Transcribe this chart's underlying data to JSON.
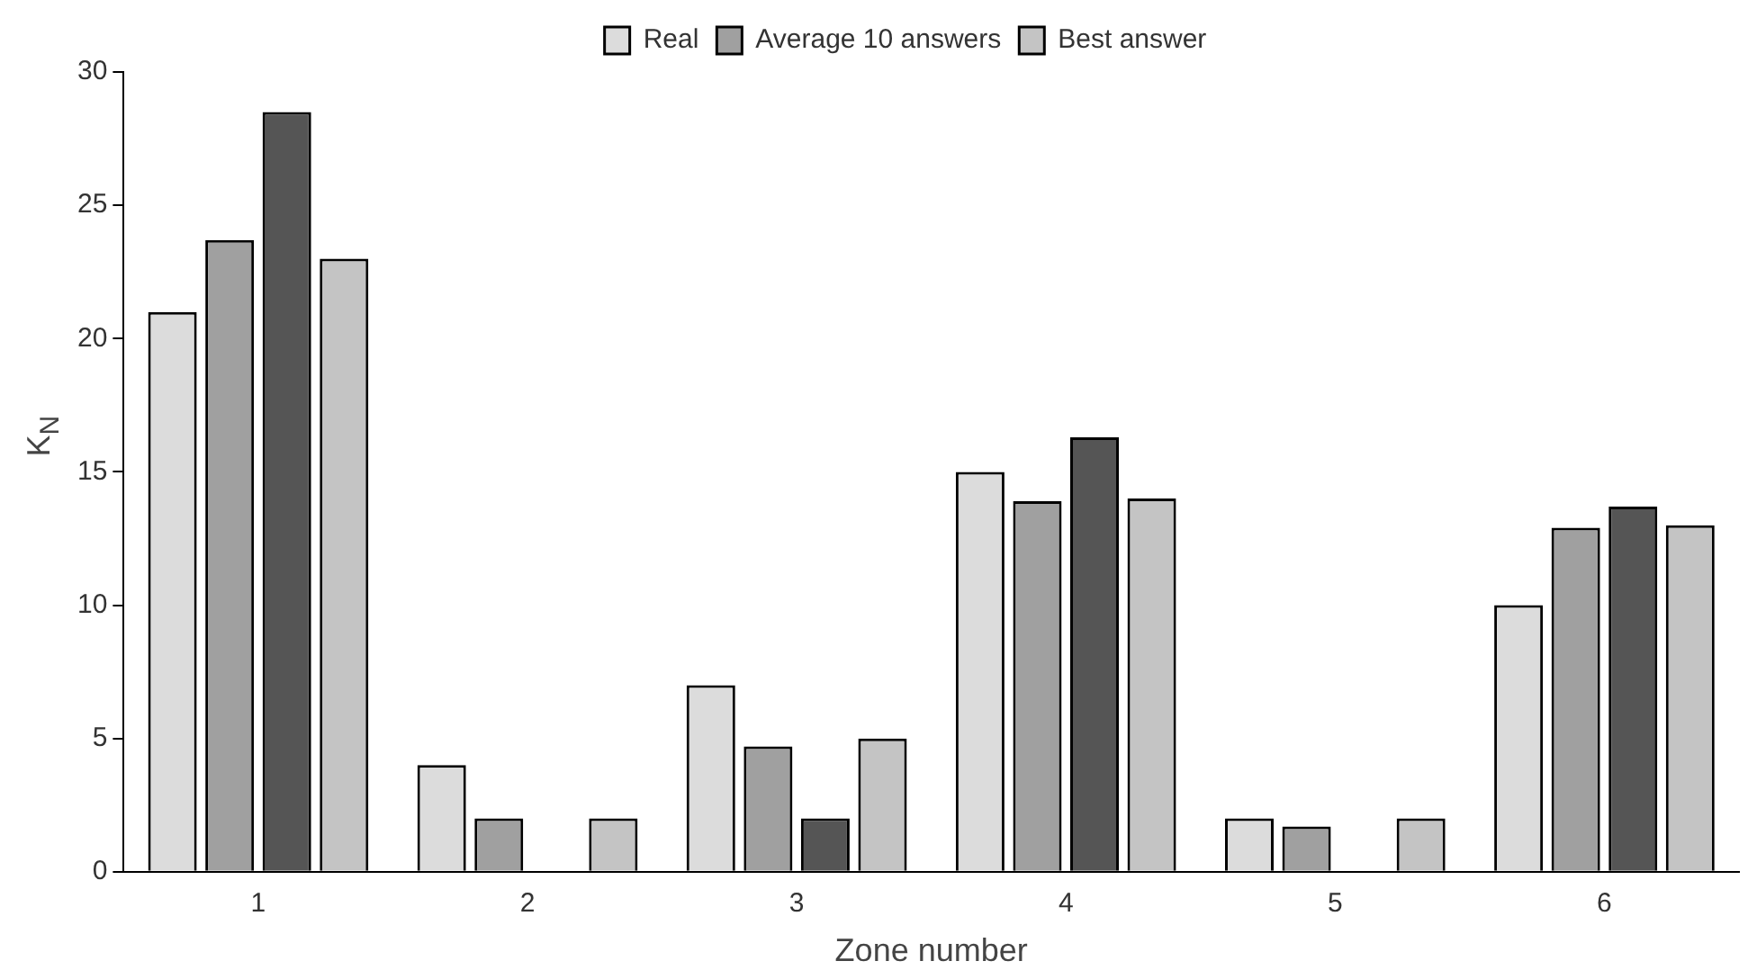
{
  "chart_data": {
    "type": "bar",
    "xlabel": "Zone number",
    "ylabel": "K$_{N}$",
    "categories": [
      "1",
      "2",
      "3",
      "4",
      "5",
      "6"
    ],
    "series": [
      {
        "name": "Real",
        "color": "#dcdcdc",
        "values": [
          21,
          4,
          7,
          15,
          2,
          10
        ]
      },
      {
        "name": "Average 10 answers",
        "color": "#a0a0a0",
        "values": [
          23.7,
          2,
          4.7,
          13.9,
          1.7,
          12.9
        ]
      },
      {
        "color": "#555555",
        "values": [
          28.5,
          null,
          2,
          16.3,
          null,
          13.7
        ]
      },
      {
        "name": "Best answer",
        "color": "#c4c4c4",
        "values": [
          23,
          2,
          5,
          14,
          2,
          13
        ]
      }
    ],
    "ylim": [
      0,
      30
    ],
    "yticks": [
      0,
      5,
      10,
      15,
      20,
      25,
      30
    ],
    "grid": false,
    "legend": "top"
  }
}
